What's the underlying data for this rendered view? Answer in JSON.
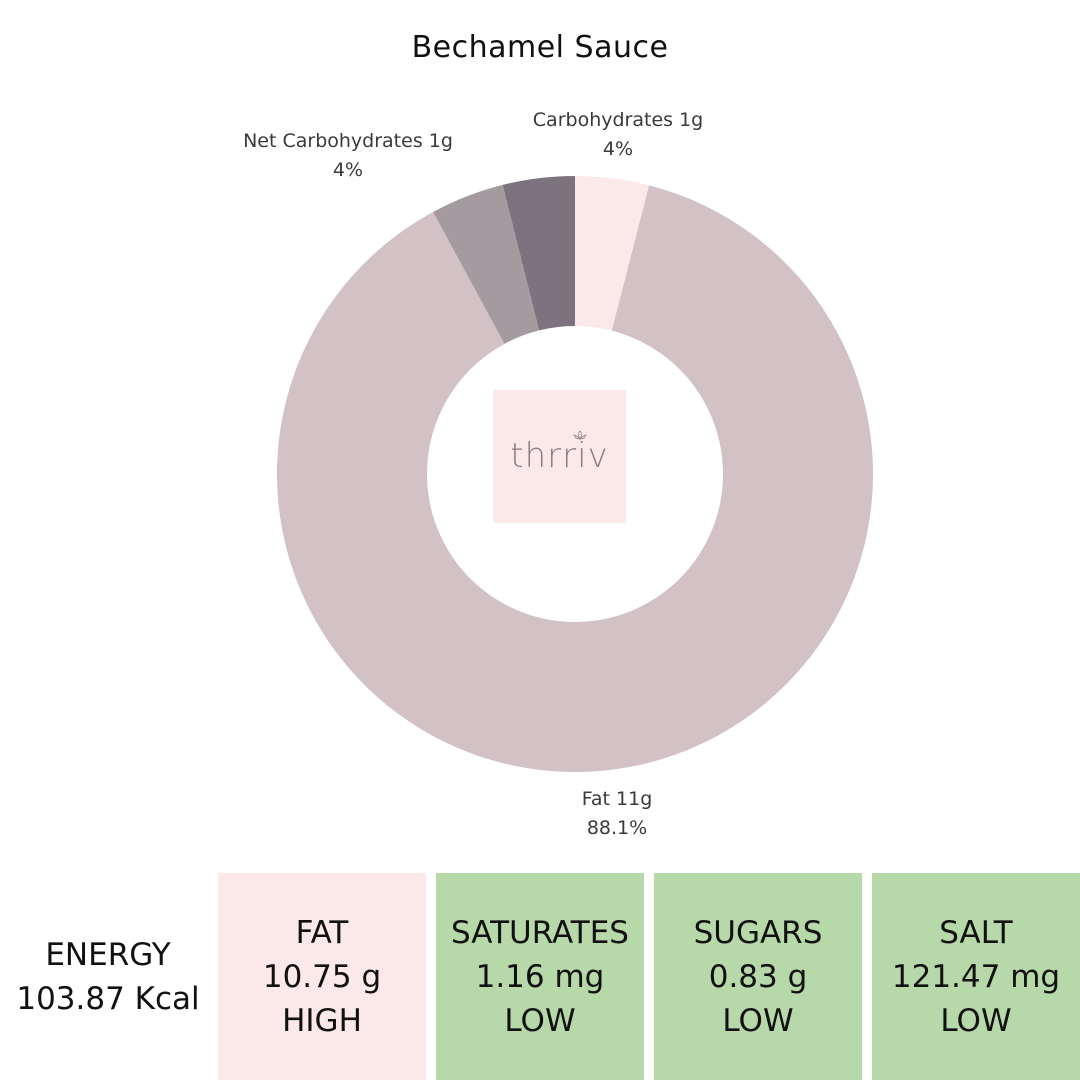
{
  "chart_data": {
    "type": "pie",
    "title": "Bechamel Sauce",
    "slices": [
      {
        "name": "Carbohydrates",
        "amount": "1g",
        "value": 4,
        "percent_label": "4%",
        "color": "#fbe8e9"
      },
      {
        "name": "Fat",
        "amount": "11g",
        "value": 88.1,
        "percent_label": "88.1%",
        "color": "#d2c1c5"
      },
      {
        "name": "Net Carbohydrates",
        "amount": "1g",
        "value": 4,
        "percent_label": "4%",
        "color": "#a59a9f"
      },
      {
        "name": "",
        "amount": "",
        "value": 3.9,
        "percent_label": "",
        "color": "#7b737e"
      }
    ],
    "labels": {
      "carbohydrates": {
        "line1": "Carbohydrates 1g",
        "line2": "4%"
      },
      "net_carbohydrates": {
        "line1": "Net Carbohydrates 1g",
        "line2": "4%"
      },
      "fat": {
        "line1": "Fat 11g",
        "line2": "88.1%"
      }
    }
  },
  "logo": {
    "text": "thrriv"
  },
  "panels": [
    {
      "id": "energy",
      "line1": "ENERGY",
      "line2": "103.87 Kcal",
      "line3": "",
      "color": "#ffffff"
    },
    {
      "id": "fat",
      "line1": "FAT",
      "line2": "10.75 g",
      "line3": "HIGH",
      "color": "#fbe8e9"
    },
    {
      "id": "saturates",
      "line1": "SATURATES",
      "line2": "1.16 mg",
      "line3": "LOW",
      "color": "#b7d8a9"
    },
    {
      "id": "sugars",
      "line1": "SUGARS",
      "line2": "0.83 g",
      "line3": "LOW",
      "color": "#b7d8a9"
    },
    {
      "id": "salt",
      "line1": "SALT",
      "line2": "121.47 mg",
      "line3": "LOW",
      "color": "#b7d8a9"
    }
  ]
}
